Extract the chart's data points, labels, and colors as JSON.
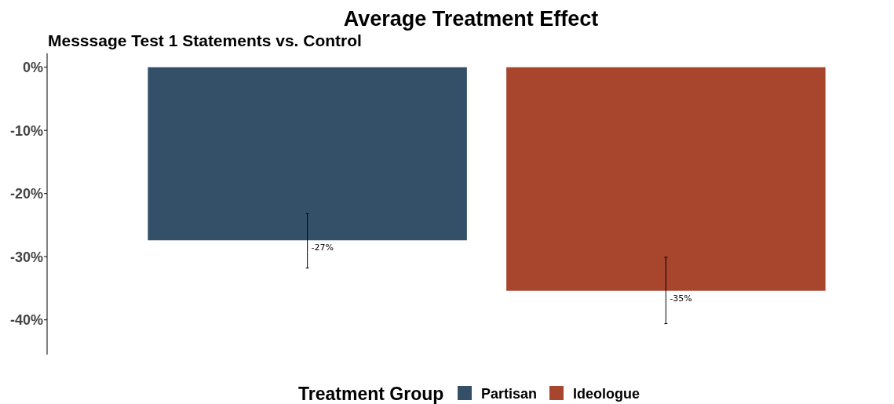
{
  "chart_data": {
    "type": "bar",
    "title": "Average Treatment Effect",
    "subtitle": "Messsage Test 1 Statements vs. Control",
    "legend_title": "Treatment Group",
    "legend": "bottom",
    "grid": false,
    "tick_labels": "y",
    "categories": [
      null
    ],
    "series": [
      {
        "name": "Partisan",
        "color": "#345068",
        "values": [
          -27.4
        ],
        "errors": [
          [
            -31.8,
            -23.2
          ]
        ],
        "value_labels": [
          "-27%"
        ]
      },
      {
        "name": "Ideologue",
        "color": "#a8452d",
        "values": [
          -35.4
        ],
        "errors": [
          [
            -40.6,
            -30.1
          ]
        ],
        "value_labels": [
          "-35%"
        ]
      }
    ],
    "ylim": [
      -45.5,
      2.2
    ],
    "yticks": [
      {
        "value": 0,
        "label": "0%"
      },
      {
        "value": -10,
        "label": "-10%"
      },
      {
        "value": -20,
        "label": "-20%"
      },
      {
        "value": -30,
        "label": "-30%"
      },
      {
        "value": -40,
        "label": "-40%"
      }
    ]
  }
}
